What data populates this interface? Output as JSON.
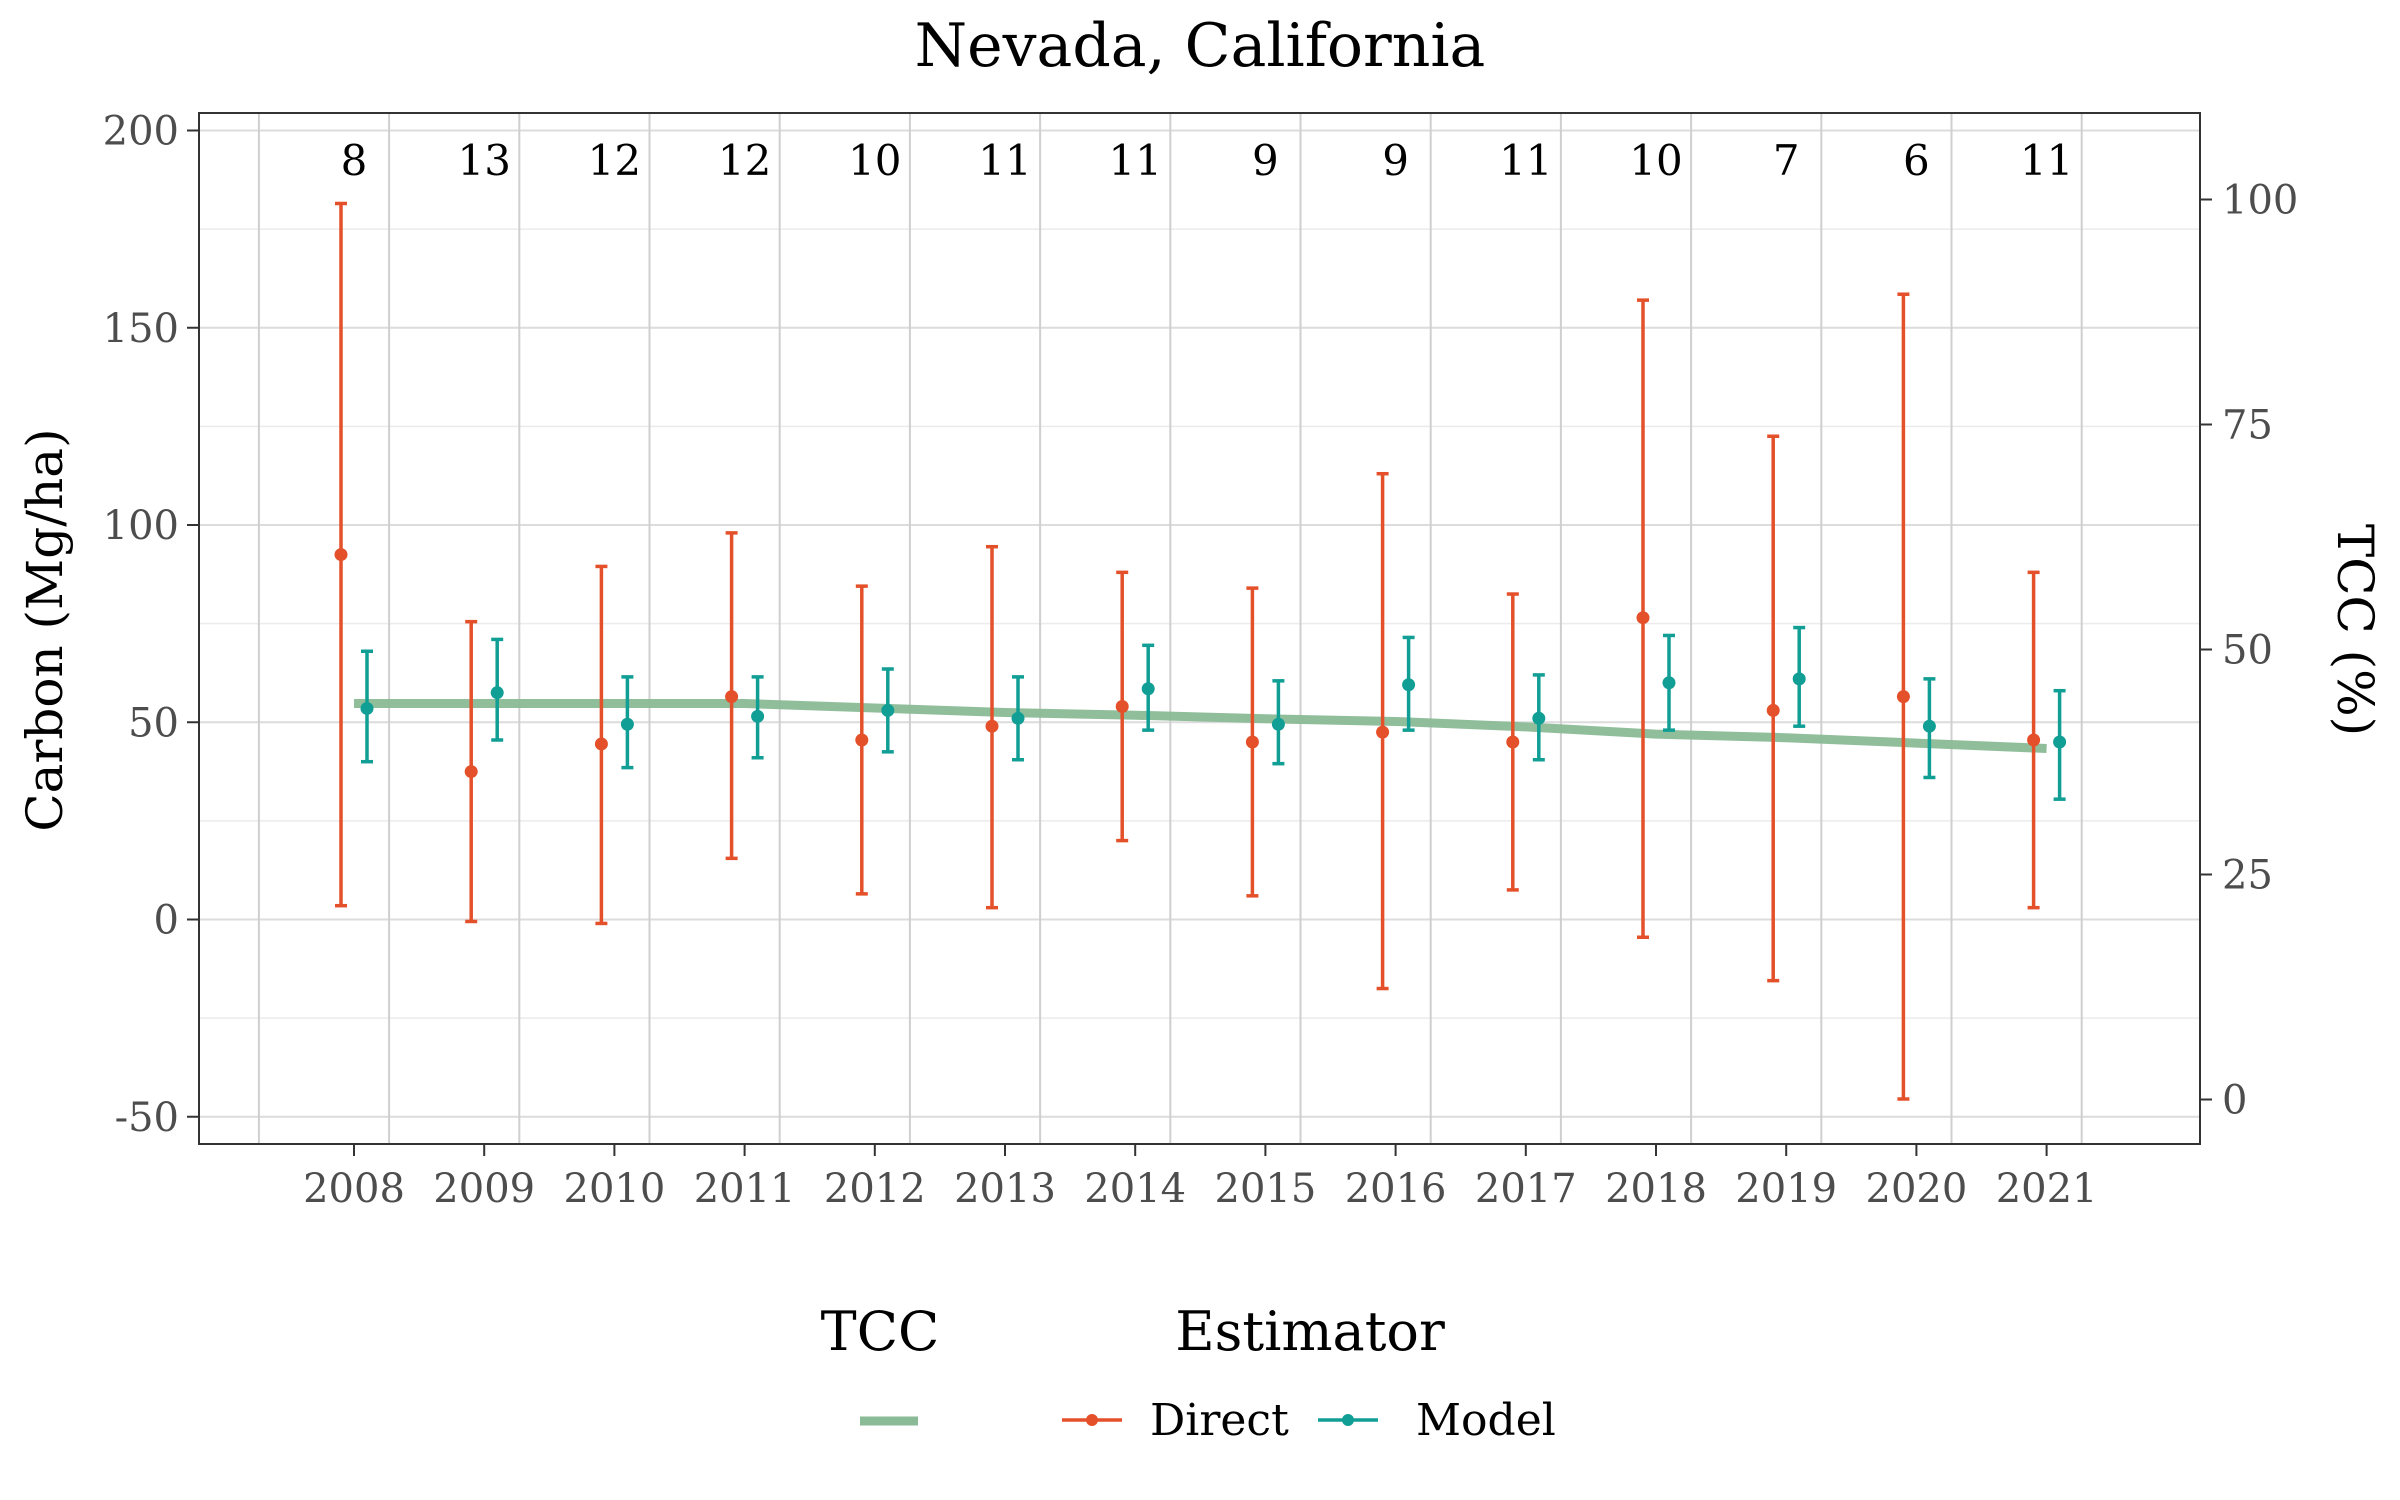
{
  "chart_data": {
    "type": "scatter",
    "title": "Nevada, California",
    "ylabel": "Carbon (Mg/ha)",
    "y2label": "TCC (%)",
    "xlabel": "",
    "ylim": [
      -55,
      202
    ],
    "y2lim": [
      -4,
      109
    ],
    "yticks": [
      -50,
      0,
      50,
      100,
      150,
      200
    ],
    "y2ticks": [
      0,
      25,
      50,
      75,
      100
    ],
    "grid": true,
    "categories": [
      "2008",
      "2009",
      "2010",
      "2011",
      "2012",
      "2013",
      "2014",
      "2015",
      "2016",
      "2017",
      "2018",
      "2019",
      "2020",
      "2021"
    ],
    "counts": [
      "8",
      "13",
      "12",
      "12",
      "10",
      "11",
      "11",
      "9",
      "9",
      "11",
      "10",
      "7",
      "6",
      "11"
    ],
    "series": [
      {
        "name": "Direct",
        "color": "#e4502a",
        "values": [
          92.5,
          37.5,
          44.5,
          56.5,
          45.5,
          49,
          54,
          45,
          47.5,
          45,
          76.5,
          53,
          56.5,
          45.5
        ],
        "lower": [
          3.5,
          -0.5,
          -1,
          15.5,
          6.5,
          3,
          20,
          6,
          -17.5,
          7.5,
          -4.5,
          -15.5,
          -45.5,
          3
        ],
        "upper": [
          181.5,
          75.5,
          89.5,
          98,
          84.5,
          94.5,
          88,
          84,
          113,
          82.5,
          157,
          122.5,
          158.5,
          88
        ]
      },
      {
        "name": "Model",
        "color": "#119e95",
        "values": [
          53.5,
          57.5,
          49.5,
          51.5,
          53,
          51,
          58.5,
          49.5,
          59.5,
          51,
          60,
          61,
          49,
          45
        ],
        "lower": [
          40,
          45.5,
          38.5,
          41,
          42.5,
          40.5,
          48,
          39.5,
          48,
          40.5,
          48,
          49,
          36,
          30.5
        ],
        "upper": [
          68,
          71,
          61.5,
          61.5,
          63.5,
          61.5,
          69.5,
          60.5,
          71.5,
          62,
          72,
          74,
          61,
          58
        ]
      }
    ],
    "tcc": {
      "name": "TCC",
      "color": "#8abb96",
      "values": [
        44,
        44,
        44,
        44,
        43.5,
        43,
        42.7,
        42.3,
        42,
        41.4,
        40.6,
        40.2,
        39.6,
        39
      ]
    },
    "legend": {
      "position": "bottom",
      "tcc_title": "TCC",
      "estimator_title": "Estimator",
      "labels": [
        "Direct",
        "Model"
      ]
    }
  }
}
